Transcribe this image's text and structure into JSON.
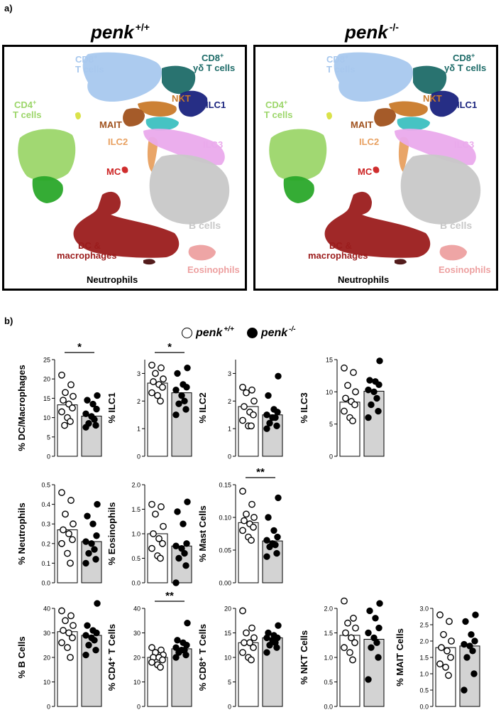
{
  "figure": {
    "panel_a_label": "a)",
    "panel_b_label": "b)",
    "umaps": [
      {
        "genotype": "penk",
        "superscript": "+/+"
      },
      {
        "genotype": "penk",
        "superscript": "-/-"
      }
    ],
    "cluster_labels": {
      "cd8": "CD8",
      "cd8_tcells": "T cells",
      "cd8gd": "CD8",
      "cd8gd_tcells": "γδ T cells",
      "cd4": "CD4",
      "cd4_tcells": "T cells",
      "nkt": "NKT",
      "ilc1": "ILC1",
      "mait": "MAIT",
      "ilc2": "ILC2",
      "ilc3": "ILC3",
      "mc": "MC",
      "bcells": "B cells",
      "dc1": "DC &",
      "dc2": "macrophages",
      "eos": "Eosinophils",
      "neut": "Neutrophils",
      "plus": "+"
    },
    "cluster_colors": {
      "cd8": "#a8c8ee",
      "cd8gd": "#1d6b68",
      "cd4_light": "#9cd66a",
      "cd4_dark": "#2aa82a",
      "nkt": "#c97a2a",
      "ilc1": "#1a237e",
      "mait": "#a0521e",
      "teal": "#3cc0c0",
      "ilc2": "#e8a060",
      "ilc3": "#eaaaec",
      "mc": "#cc2222",
      "bcells": "#c8c8c8",
      "dc": "#9b1c1c",
      "eos": "#eda0a0",
      "neut": "#4a1010",
      "yellow": "#d8e040"
    },
    "legend": {
      "wt_label": "penk",
      "wt_sup": "+/+",
      "ko_label": "penk",
      "ko_sup": "-/-"
    }
  },
  "chart_data": [
    {
      "type": "bar",
      "ylabel": "% DC/Macrophages",
      "ylim": [
        0,
        25
      ],
      "ticks": [
        "0",
        "5",
        "10",
        "15",
        "20",
        "25"
      ],
      "tick_values": [
        0,
        5,
        10,
        15,
        20,
        25
      ],
      "categories": [
        "penk +/+",
        "penk -/-"
      ],
      "values": [
        13.3,
        10.4
      ],
      "points_wt": [
        21,
        18.5,
        16.5,
        15.5,
        14.5,
        13.5,
        12.5,
        11.5,
        10,
        9,
        8
      ],
      "points_ko": [
        15.7,
        14.5,
        13.5,
        12.2,
        11,
        10.3,
        9.5,
        8.5,
        8,
        7.5
      ],
      "significance": "*"
    },
    {
      "type": "bar",
      "ylabel": "% ILC1",
      "ylim": [
        0,
        3.5
      ],
      "ticks": [
        "0",
        "1",
        "2",
        "3"
      ],
      "tick_values": [
        0,
        1,
        2,
        3
      ],
      "categories": [
        "penk +/+",
        "penk -/-"
      ],
      "values": [
        2.65,
        2.3
      ],
      "points_wt": [
        3.3,
        3.2,
        3.0,
        2.8,
        2.7,
        2.6,
        2.5,
        2.3,
        2.2,
        2.0
      ],
      "points_ko": [
        3.2,
        3.0,
        2.6,
        2.5,
        2.4,
        2.2,
        2.0,
        1.9,
        1.7,
        1.5
      ],
      "significance": "*"
    },
    {
      "type": "bar",
      "ylabel": "% ILC2",
      "ylim": [
        0,
        3.5
      ],
      "ticks": [
        "0",
        "1",
        "2",
        "3"
      ],
      "tick_values": [
        0,
        1,
        2,
        3
      ],
      "categories": [
        "penk +/+",
        "penk -/-"
      ],
      "values": [
        1.8,
        1.5
      ],
      "points_wt": [
        2.5,
        2.4,
        2.3,
        2.0,
        1.8,
        1.6,
        1.5,
        1.3,
        1.1,
        1.1
      ],
      "points_ko": [
        2.9,
        2.2,
        1.7,
        1.6,
        1.5,
        1.4,
        1.4,
        1.2,
        1.1,
        1.0
      ],
      "significance": ""
    },
    {
      "type": "bar",
      "ylabel": "% ILC3",
      "ylim": [
        0,
        15
      ],
      "ticks": [
        "0",
        "5",
        "10",
        "15"
      ],
      "tick_values": [
        0,
        5,
        10,
        15
      ],
      "categories": [
        "penk +/+",
        "penk -/-"
      ],
      "values": [
        8.4,
        10.1
      ],
      "points_wt": [
        13.7,
        13.0,
        11.0,
        10.0,
        9.0,
        8.5,
        8.0,
        7.0,
        6.0,
        5.5
      ],
      "points_ko": [
        14.8,
        11.8,
        11.6,
        11.1,
        10.3,
        10.0,
        9.0,
        8.0,
        7.0,
        6.0
      ],
      "significance": ""
    },
    {
      "type": "bar",
      "ylabel": "% Neutrophils",
      "ylim": [
        0,
        0.5
      ],
      "ticks": [
        "0.0",
        "0.1",
        "0.2",
        "0.3",
        "0.4",
        "0.5"
      ],
      "tick_values": [
        0,
        0.1,
        0.2,
        0.3,
        0.4,
        0.5
      ],
      "categories": [
        "penk +/+",
        "penk -/-"
      ],
      "values": [
        0.27,
        0.21
      ],
      "points_wt": [
        0.46,
        0.42,
        0.35,
        0.3,
        0.27,
        0.25,
        0.22,
        0.2,
        0.15,
        0.1
      ],
      "points_ko": [
        0.4,
        0.34,
        0.3,
        0.24,
        0.21,
        0.2,
        0.17,
        0.15,
        0.12,
        0.1
      ],
      "significance": ""
    },
    {
      "type": "bar",
      "ylabel": "% Eosinophils",
      "ylim": [
        0,
        2.0
      ],
      "ticks": [
        "0.0",
        "0.5",
        "1.0",
        "1.5",
        "2.0"
      ],
      "tick_values": [
        0,
        0.5,
        1.0,
        1.5,
        2.0
      ],
      "categories": [
        "penk +/+",
        "penk -/-"
      ],
      "values": [
        1.0,
        0.75
      ],
      "points_wt": [
        1.6,
        1.55,
        1.4,
        1.15,
        1.0,
        0.9,
        0.8,
        0.7,
        0.55,
        0.5
      ],
      "points_ko": [
        1.65,
        1.45,
        1.2,
        0.8,
        0.75,
        0.7,
        0.6,
        0.5,
        0.35,
        0.0
      ],
      "significance": ""
    },
    {
      "type": "bar",
      "ylabel": "% Mast Cells",
      "ylim": [
        0,
        0.15
      ],
      "ticks": [
        "0.00",
        "0.05",
        "0.10",
        "0.15"
      ],
      "tick_values": [
        0,
        0.05,
        0.1,
        0.15
      ],
      "categories": [
        "penk +/+",
        "penk -/-"
      ],
      "values": [
        0.092,
        0.064
      ],
      "points_wt": [
        0.14,
        0.12,
        0.105,
        0.1,
        0.095,
        0.09,
        0.085,
        0.08,
        0.07,
        0.065
      ],
      "points_ko": [
        0.13,
        0.1,
        0.08,
        0.07,
        0.065,
        0.06,
        0.058,
        0.055,
        0.045,
        0.04
      ],
      "significance": "**"
    },
    {
      "type": "bar",
      "ylabel": "% B Cells",
      "ylim": [
        0,
        40
      ],
      "ticks": [
        "0",
        "10",
        "20",
        "30",
        "40"
      ],
      "tick_values": [
        0,
        10,
        20,
        30,
        40
      ],
      "categories": [
        "penk +/+",
        "penk -/-"
      ],
      "values": [
        30.5,
        29
      ],
      "points_wt": [
        39,
        37,
        35,
        33,
        31,
        30,
        28,
        26,
        24,
        20
      ],
      "points_ko": [
        42,
        33,
        31,
        30,
        29,
        28,
        27,
        25,
        23,
        21
      ],
      "significance": ""
    },
    {
      "type": "bar",
      "ylabel": "% CD4⁺ T Cells",
      "ylim": [
        0,
        40
      ],
      "ticks": [
        "0",
        "10",
        "20",
        "30",
        "40"
      ],
      "tick_values": [
        0,
        10,
        20,
        30,
        40
      ],
      "categories": [
        "penk +/+",
        "penk -/-"
      ],
      "values": [
        20,
        23.5
      ],
      "points_wt": [
        24,
        23,
        22,
        21,
        20,
        20,
        19,
        18,
        17,
        16
      ],
      "points_ko": [
        34,
        27,
        26,
        25,
        24,
        23,
        23,
        22,
        21,
        20
      ],
      "significance": "**"
    },
    {
      "type": "bar",
      "ylabel": "% CD8⁺ T Cells",
      "ylim": [
        0,
        20
      ],
      "ticks": [
        "0",
        "5",
        "10",
        "15",
        "20"
      ],
      "tick_values": [
        0,
        5,
        10,
        15,
        20
      ],
      "categories": [
        "penk +/+",
        "penk -/-"
      ],
      "values": [
        13,
        14
      ],
      "points_wt": [
        19.5,
        16,
        15,
        14,
        13,
        13,
        12,
        11,
        10,
        9.5
      ],
      "points_ko": [
        16.5,
        15,
        14.5,
        14,
        14,
        13.5,
        13,
        12.5,
        12,
        11
      ],
      "significance": ""
    },
    {
      "type": "bar",
      "ylabel": "% NKT Cells",
      "ylim": [
        0,
        2.0
      ],
      "ticks": [
        "0.0",
        "0.5",
        "1.0",
        "1.5",
        "2.0"
      ],
      "tick_values": [
        0,
        0.5,
        1.0,
        1.5,
        2.0
      ],
      "categories": [
        "penk +/+",
        "penk -/-"
      ],
      "values": [
        1.45,
        1.37
      ],
      "points_wt": [
        2.15,
        1.8,
        1.7,
        1.6,
        1.5,
        1.4,
        1.3,
        1.2,
        1.1,
        0.95
      ],
      "points_ko": [
        2.1,
        1.95,
        1.8,
        1.6,
        1.5,
        1.4,
        1.3,
        1.2,
        1.0,
        0.55
      ],
      "significance": ""
    },
    {
      "type": "bar",
      "ylabel": "% MAIT Cells",
      "ylim": [
        0,
        3.0
      ],
      "ticks": [
        "0.0",
        "0.5",
        "1.0",
        "1.5",
        "2.0",
        "2.5",
        "3.0"
      ],
      "tick_values": [
        0,
        0.5,
        1.0,
        1.5,
        2.0,
        2.5,
        3.0
      ],
      "categories": [
        "penk +/+",
        "penk -/-"
      ],
      "values": [
        1.8,
        1.85
      ],
      "points_wt": [
        2.8,
        2.6,
        2.2,
        2.0,
        1.8,
        1.7,
        1.5,
        1.3,
        1.2,
        0.95
      ],
      "points_ko": [
        2.8,
        2.6,
        2.2,
        2.0,
        1.9,
        1.85,
        1.7,
        1.5,
        1.0,
        0.5
      ],
      "significance": ""
    }
  ]
}
